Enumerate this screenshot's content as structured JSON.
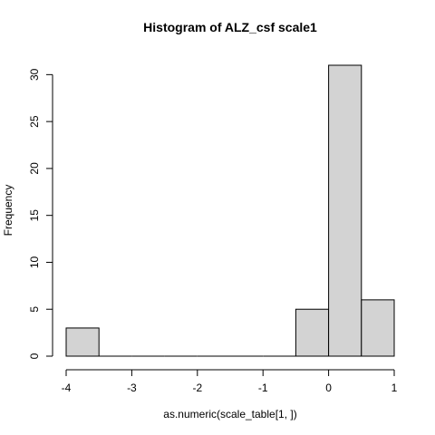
{
  "chart_data": {
    "type": "bar",
    "title": "Histogram of  ALZ_csf scale1",
    "xlabel": "as.numeric(scale_table[1, ])",
    "ylabel": "Frequency",
    "bins": [
      {
        "x0": -4.0,
        "x1": -3.5,
        "count": 3
      },
      {
        "x0": -3.5,
        "x1": -3.0,
        "count": 0
      },
      {
        "x0": -3.0,
        "x1": -2.5,
        "count": 0
      },
      {
        "x0": -2.5,
        "x1": -2.0,
        "count": 0
      },
      {
        "x0": -2.0,
        "x1": -1.5,
        "count": 0
      },
      {
        "x0": -1.5,
        "x1": -1.0,
        "count": 0
      },
      {
        "x0": -1.0,
        "x1": -0.5,
        "count": 0
      },
      {
        "x0": -0.5,
        "x1": 0.0,
        "count": 5
      },
      {
        "x0": 0.0,
        "x1": 0.5,
        "count": 31
      },
      {
        "x0": 0.5,
        "x1": 1.0,
        "count": 6
      }
    ],
    "xlim": [
      -4,
      1
    ],
    "ylim": [
      0,
      31
    ],
    "xticks": [
      -4,
      -3,
      -2,
      -1,
      0,
      1
    ],
    "yticks": [
      0,
      5,
      10,
      15,
      20,
      25,
      30
    ],
    "bar_color": "#d3d3d3",
    "grid": false,
    "legend": "none"
  }
}
